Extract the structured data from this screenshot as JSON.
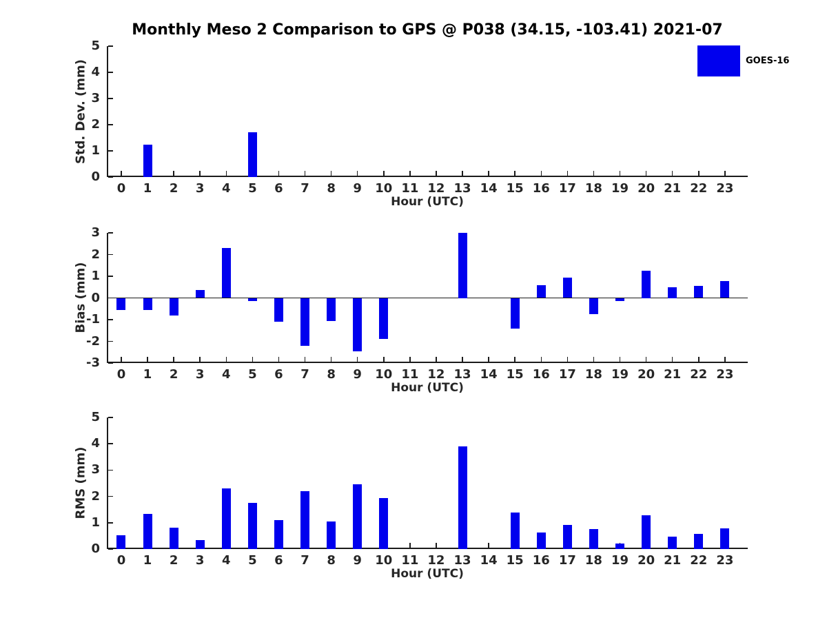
{
  "title": "Monthly Meso 2 Comparison to GPS @ P038 (34.15, -103.41) 2021-07",
  "legend": {
    "label": "GOES-16",
    "position": "top-right"
  },
  "colors": {
    "bar": "#0000ee",
    "axis": "#1a1a1a",
    "text": "#262626",
    "background": "#ffffff"
  },
  "chart_data": [
    {
      "id": "std_dev",
      "type": "bar",
      "title": "",
      "xlabel": "Hour (UTC)",
      "ylabel": "Std. Dev. (mm)",
      "categories": [
        0,
        1,
        2,
        3,
        4,
        5,
        6,
        7,
        8,
        9,
        10,
        11,
        12,
        13,
        14,
        15,
        16,
        17,
        18,
        19,
        20,
        21,
        22,
        23
      ],
      "values": [
        0,
        1.25,
        0,
        0,
        0,
        1.72,
        0,
        0,
        0,
        0,
        0,
        0,
        0,
        0,
        0,
        0,
        0,
        0,
        0,
        0,
        0,
        0,
        0,
        0
      ],
      "ylim": [
        0,
        5
      ],
      "yticks": [
        0,
        1,
        2,
        3,
        4,
        5
      ],
      "xlim": [
        -0.55,
        23.87
      ],
      "grid": false,
      "legend_entry": "GOES-16"
    },
    {
      "id": "bias",
      "type": "bar",
      "title": "",
      "xlabel": "Hour (UTC)",
      "ylabel": "Bias (mm)",
      "categories": [
        0,
        1,
        2,
        3,
        4,
        5,
        6,
        7,
        8,
        9,
        10,
        11,
        12,
        13,
        14,
        15,
        16,
        17,
        18,
        19,
        20,
        21,
        22,
        23
      ],
      "values": [
        -0.55,
        -0.55,
        -0.8,
        0.35,
        2.3,
        -0.15,
        -1.1,
        -2.2,
        -1.05,
        -2.45,
        -1.9,
        0,
        0,
        3.0,
        0,
        -1.4,
        0.6,
        0.95,
        -0.75,
        -0.15,
        1.25,
        0.5,
        0.57,
        0.78
      ],
      "ylim": [
        -3,
        3
      ],
      "yticks": [
        -3,
        -2,
        -1,
        0,
        1,
        2,
        3
      ],
      "xlim": [
        -0.55,
        23.87
      ],
      "grid": false,
      "legend_entry": "GOES-16"
    },
    {
      "id": "rms",
      "type": "bar",
      "title": "",
      "xlabel": "Hour (UTC)",
      "ylabel": "RMS (mm)",
      "categories": [
        0,
        1,
        2,
        3,
        4,
        5,
        6,
        7,
        8,
        9,
        10,
        11,
        12,
        13,
        14,
        15,
        16,
        17,
        18,
        19,
        20,
        21,
        22,
        23
      ],
      "values": [
        0.52,
        1.33,
        0.8,
        0.35,
        2.3,
        1.75,
        1.1,
        2.2,
        1.05,
        2.47,
        1.95,
        0,
        0,
        3.9,
        0,
        1.4,
        0.62,
        0.92,
        0.75,
        0.2,
        1.27,
        0.48,
        0.58,
        0.78
      ],
      "ylim": [
        0,
        5
      ],
      "yticks": [
        0,
        1,
        2,
        3,
        4,
        5
      ],
      "xlim": [
        -0.55,
        23.87
      ],
      "grid": false,
      "legend_entry": "GOES-16"
    }
  ]
}
